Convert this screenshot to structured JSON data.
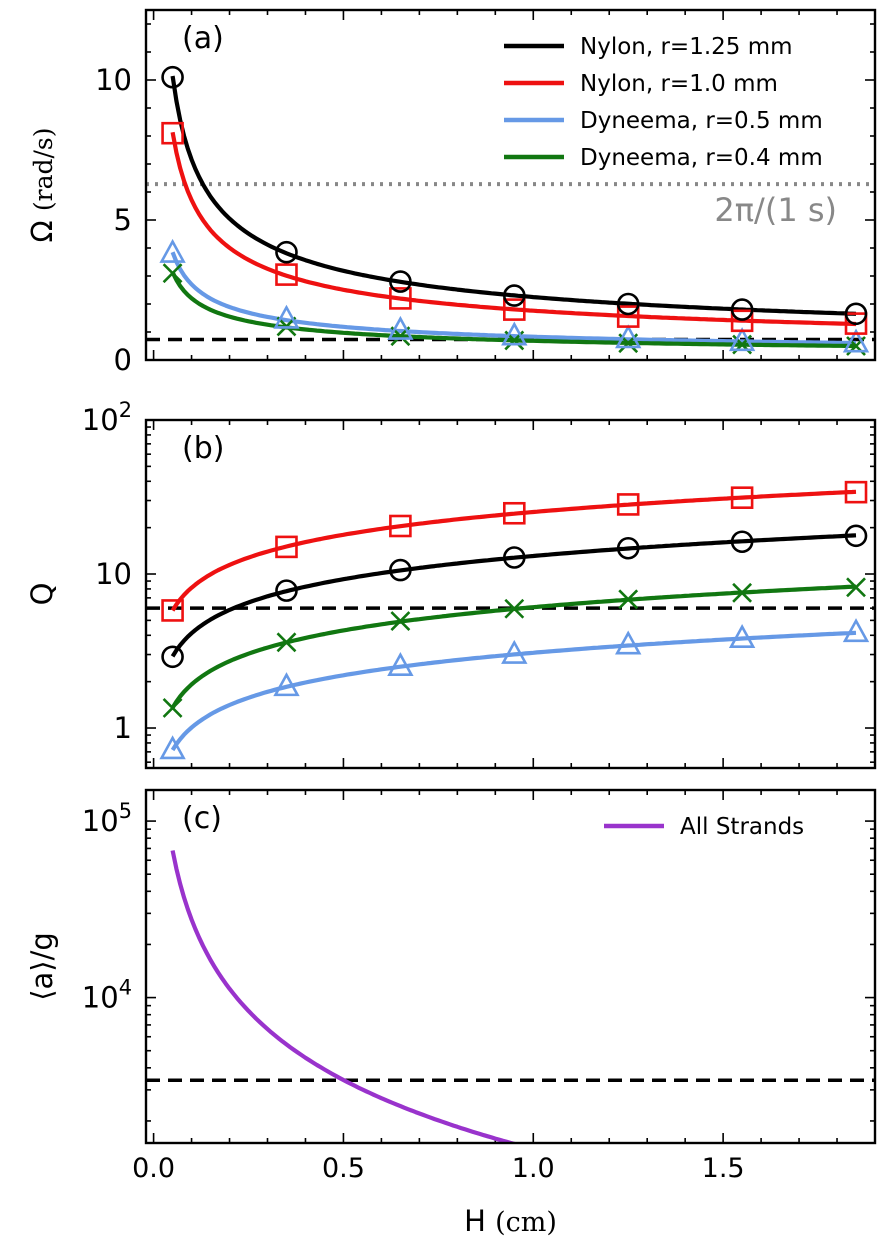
{
  "x_axis": {
    "label_main": "H",
    "label_unit": "(cm)",
    "range": [
      -0.02,
      1.9
    ],
    "ticks": [
      0.0,
      0.5,
      1.0,
      1.5
    ],
    "tick_labels": [
      "0.0",
      "0.5",
      "1.0",
      "1.5"
    ]
  },
  "chart_data": [
    {
      "type": "line",
      "panel_label": "(a)",
      "ylabel_main": "Ω",
      "ylabel_unit": "(rad/s)",
      "yscale": "linear",
      "ylim": [
        0,
        12.5
      ],
      "yticks": [
        0,
        5,
        10
      ],
      "ytick_labels": [
        "0",
        "5",
        "10"
      ],
      "x": [
        0.05,
        0.35,
        0.65,
        0.95,
        1.25,
        1.55,
        1.85
      ],
      "series": [
        {
          "name": "Nylon, r=1.25 mm",
          "color": "#000000",
          "marker": "circle",
          "values": [
            10.1,
            3.85,
            2.8,
            2.3,
            2.0,
            1.8,
            1.65
          ]
        },
        {
          "name": "Nylon, r=1.0 mm",
          "color": "#ee1111",
          "marker": "square",
          "values": [
            8.1,
            3.05,
            2.2,
            1.8,
            1.55,
            1.4,
            1.3
          ]
        },
        {
          "name": "Dyneema, r=0.5 mm",
          "color": "#6699e6",
          "marker": "triangle",
          "values": [
            3.8,
            1.45,
            1.05,
            0.85,
            0.75,
            0.65,
            0.6
          ]
        },
        {
          "name": "Dyneema, r=0.4 mm",
          "color": "#117711",
          "marker": "x",
          "values": [
            3.1,
            1.2,
            0.85,
            0.7,
            0.6,
            0.55,
            0.5
          ]
        }
      ],
      "hlines": [
        {
          "y": 6.283,
          "color": "#888888",
          "style": "dotted",
          "label": "2π/(1 s)"
        },
        {
          "y": 0.73,
          "color": "#000000",
          "style": "dashed"
        }
      ],
      "legend_placement": "top-right"
    },
    {
      "type": "line",
      "panel_label": "(b)",
      "ylabel_main": "Q",
      "yscale": "log",
      "ylim": [
        0.55,
        100
      ],
      "yticks": [
        1,
        10,
        100
      ],
      "ytick_labels": [
        "1",
        "10",
        "10^2"
      ],
      "x": [
        0.05,
        0.35,
        0.65,
        0.95,
        1.25,
        1.55,
        1.85
      ],
      "series": [
        {
          "color": "#000000",
          "marker": "circle",
          "values": [
            2.9,
            7.8,
            10.6,
            12.8,
            14.7,
            16.2,
            17.7
          ]
        },
        {
          "color": "#ee1111",
          "marker": "square",
          "values": [
            5.8,
            15.0,
            20.5,
            24.8,
            28.3,
            31.3,
            34.0
          ]
        },
        {
          "color": "#6699e6",
          "marker": "triangle",
          "values": [
            0.72,
            1.85,
            2.5,
            3.0,
            3.45,
            3.8,
            4.15
          ]
        },
        {
          "color": "#117711",
          "marker": "x",
          "values": [
            1.35,
            3.6,
            4.95,
            5.95,
            6.85,
            7.55,
            8.2
          ]
        }
      ],
      "hlines": [
        {
          "y": 6.0,
          "color": "#000000",
          "style": "dashed"
        }
      ]
    },
    {
      "type": "line",
      "panel_label": "(c)",
      "ylabel_main": "⟨a⟩/g",
      "yscale": "log",
      "ylim": [
        1500,
        150000
      ],
      "yticks": [
        10000,
        100000
      ],
      "ytick_labels": [
        "10^4",
        "10^5"
      ],
      "series": [
        {
          "name": "All Strands",
          "color": "#9933cc",
          "formula": "A / H^1.3",
          "A": 1386,
          "x_range": [
            0.05,
            1.85
          ]
        }
      ],
      "hlines": [
        {
          "y": 3400,
          "color": "#000000",
          "style": "dashed"
        }
      ],
      "legend_placement": "top-right"
    }
  ]
}
